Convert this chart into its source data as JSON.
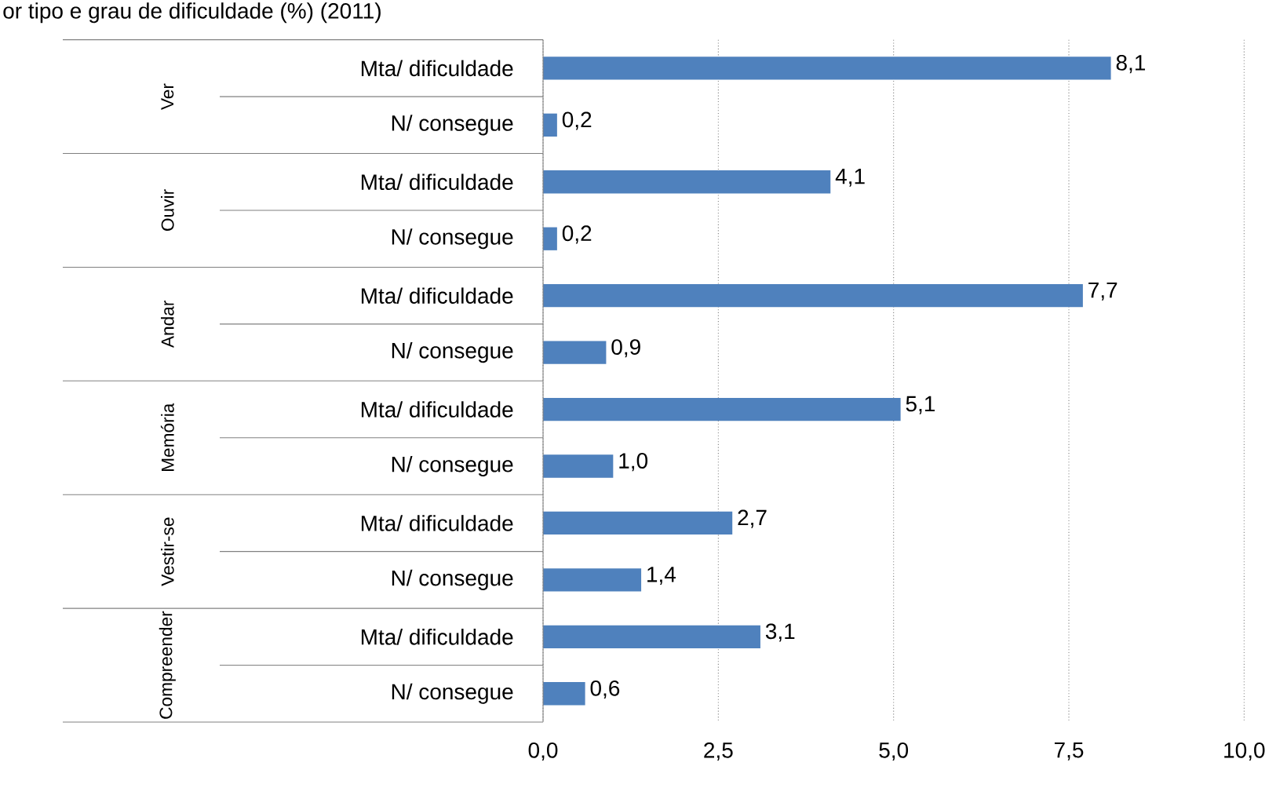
{
  "chart_data": {
    "type": "bar",
    "orientation": "horizontal",
    "title": "or tipo e grau de dificuldade (%) (2011)",
    "categories": [
      "Mta/ dificuldade",
      "N/ consegue",
      "Mta/ dificuldade",
      "N/ consegue",
      "Mta/ dificuldade",
      "N/ consegue",
      "Mta/ dificuldade",
      "N/ consegue",
      "Mta/ dificuldade",
      "N/ consegue",
      "Mta/ dificuldade",
      "N/ consegue"
    ],
    "values": [
      8.1,
      0.2,
      4.1,
      0.2,
      7.7,
      0.9,
      5.1,
      1.0,
      2.7,
      1.4,
      3.1,
      0.6
    ],
    "value_labels": [
      "8,1",
      "0,2",
      "4,1",
      "0,2",
      "7,7",
      "0,9",
      "5,1",
      "1,0",
      "2,7",
      "1,4",
      "3,1",
      "0,6"
    ],
    "color": "#4f81bd",
    "annotations": [
      "Ver",
      "Ouvir",
      "Andar",
      "Memória",
      "Vestir-se",
      "Compreender"
    ],
    "xlim": [
      0,
      10
    ],
    "xticks": [
      {
        "value": 0,
        "label": "0,0"
      },
      {
        "value": 2.5,
        "label": "2,5"
      },
      {
        "value": 5,
        "label": "5,0"
      },
      {
        "value": 7.5,
        "label": "7,5"
      },
      {
        "value": 10,
        "label": "10,0"
      }
    ],
    "grid": "x"
  }
}
